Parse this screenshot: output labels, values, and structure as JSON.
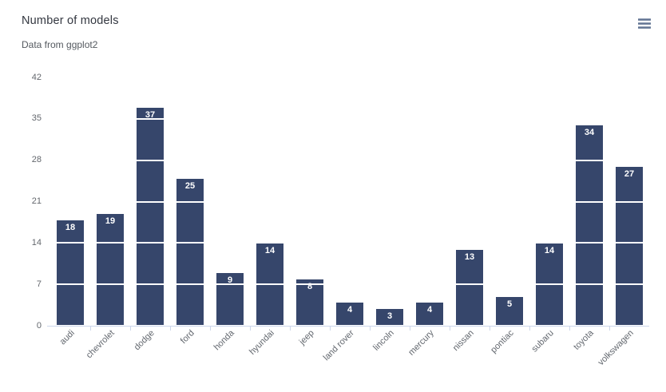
{
  "chart": {
    "title": "Number of models",
    "subtitle": "Data from ggplot2"
  },
  "toolbar": {
    "context_menu_icon": "hamburger-menu-icon"
  },
  "chart_data": {
    "type": "bar",
    "title": "Number of models",
    "subtitle": "Data from ggplot2",
    "categories": [
      "audi",
      "chevrolet",
      "dodge",
      "ford",
      "honda",
      "hyundai",
      "jeep",
      "land rover",
      "lincoln",
      "mercury",
      "nissan",
      "pontiac",
      "subaru",
      "toyota",
      "volkswagen"
    ],
    "values": [
      18,
      19,
      37,
      25,
      9,
      14,
      8,
      4,
      3,
      4,
      13,
      5,
      14,
      34,
      27
    ],
    "xlabel": "",
    "ylabel": "",
    "ylim": [
      0,
      42
    ],
    "yticks": [
      0,
      7,
      14,
      21,
      28,
      35,
      42
    ],
    "x_label_rotation": -45,
    "data_labels": true,
    "legend": "none",
    "grid": "horizontal white gridlines drawn over bars",
    "colors": {
      "bar_fill": "#36466b",
      "bar_border": "#ffffff",
      "data_label": "#ffffff",
      "gridline": "#ffffff",
      "axis_line": "#ccd6eb",
      "tick_labels": "#666666",
      "title": "#333333",
      "subtitle": "#555555",
      "menu_icon": "#56688a"
    }
  }
}
